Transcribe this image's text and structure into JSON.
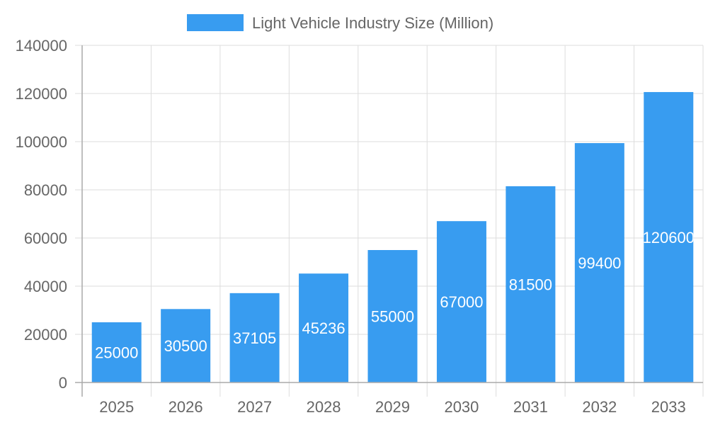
{
  "chart_data": {
    "type": "bar",
    "title": "",
    "xlabel": "",
    "ylabel": "",
    "categories": [
      "2025",
      "2026",
      "2027",
      "2028",
      "2029",
      "2030",
      "2031",
      "2032",
      "2033"
    ],
    "series": [
      {
        "name": "Light Vehicle Industry Size (Million)",
        "values": [
          25000,
          30500,
          37105,
          45236,
          55000,
          67000,
          81500,
          99400,
          120600
        ]
      }
    ],
    "ylim": [
      0,
      140000
    ],
    "yticks": [
      0,
      20000,
      40000,
      60000,
      80000,
      100000,
      120000,
      140000
    ],
    "grid": true,
    "legend_position": "top",
    "data_labels": "inside-center",
    "colors": {
      "bar": "#389cf0",
      "grid": "#dddddd",
      "axis": "#aaaaaa",
      "tick_text": "#666666",
      "label_text": "#ffffff"
    }
  }
}
